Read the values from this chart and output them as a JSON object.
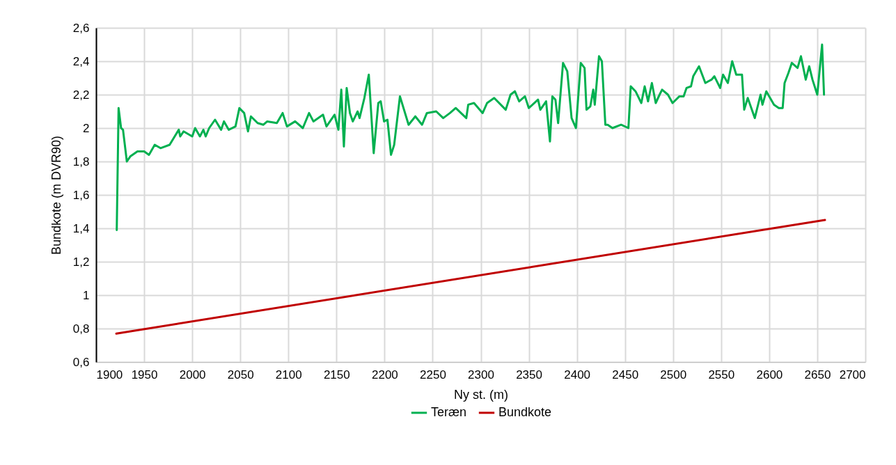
{
  "chart_data": {
    "type": "line",
    "xlabel": "Ny st. (m)",
    "ylabel": "Bundkote (m DVR90)",
    "xlim": [
      1900,
      2700
    ],
    "xticks": [
      1900,
      1950,
      2000,
      2050,
      2100,
      2150,
      2200,
      2250,
      2300,
      2350,
      2400,
      2450,
      2500,
      2550,
      2600,
      2650,
      2700
    ],
    "ylim": [
      0.6,
      2.6
    ],
    "yticks": [
      {
        "value": 0.6,
        "label": "0,6"
      },
      {
        "value": 0.8,
        "label": "0,8"
      },
      1,
      {
        "value": 1.2,
        "label": "1,2"
      },
      {
        "value": 1.4,
        "label": "1,4"
      },
      {
        "value": 1.6,
        "label": "1,6"
      },
      {
        "value": 1.8,
        "label": "1,8"
      },
      2,
      {
        "value": 2.2,
        "label": "2,2"
      },
      {
        "value": 2.4,
        "label": "2,4"
      },
      {
        "value": 2.6,
        "label": "2,6"
      }
    ],
    "grid": true,
    "legend": "bottom",
    "marker": "none",
    "line_style": "solid",
    "series": [
      {
        "name": "Teræn",
        "color": "#00b050",
        "x": [
          1921.5,
          1923.4,
          1926,
          1928,
          1932,
          1935.5,
          1943,
          1950,
          1955,
          1961,
          1967,
          1976.5,
          1986,
          1987.5,
          1991,
          2000,
          2003,
          2008,
          2011.6,
          2014,
          2017.6,
          2023.7,
          2030,
          2033,
          2038,
          2045,
          2049,
          2054,
          2058,
          2061,
          2068,
          2074,
          2078,
          2088,
          2094,
          2098.5,
          2107,
          2115,
          2121.5,
          2126,
          2136,
          2139.6,
          2148,
          2152,
          2155,
          2157.7,
          2160.6,
          2164,
          2167,
          2172,
          2174,
          2179,
          2183.6,
          2188.7,
          2193.5,
          2196,
          2199.5,
          2203,
          2206.7,
          2210,
          2216,
          2225,
          2232,
          2239,
          2244,
          2253.7,
          2261,
          2268,
          2274,
          2285,
          2287,
          2293,
          2302,
          2306.6,
          2314,
          2326,
          2331,
          2335.5,
          2340,
          2346,
          2350,
          2359.6,
          2362,
          2368,
          2372,
          2374.5,
          2377.7,
          2380.5,
          2385.6,
          2390,
          2394.5,
          2399,
          2404,
          2408,
          2410,
          2414,
          2417,
          2418.6,
          2423,
          2426,
          2429.6,
          2432,
          2437,
          2446,
          2453.6,
          2456,
          2461,
          2467,
          2470.5,
          2474,
          2478,
          2482,
          2486,
          2488.6,
          2494.7,
          2499.5,
          2506.6,
          2511,
          2514,
          2518.7,
          2521,
          2527,
          2533.6,
          2540,
          2543,
          2549,
          2552,
          2557,
          2561.5,
          2565.7,
          2571.7,
          2574,
          2577.7,
          2585,
          2591,
          2593,
          2597,
          2605,
          2610,
          2614,
          2616,
          2620,
          2623.5,
          2629.5,
          2633,
          2638,
          2641.6,
          2645,
          2650,
          2655,
          2657
        ],
        "values": [
          1.39,
          2.12,
          2.0,
          1.99,
          1.8,
          1.83,
          1.86,
          1.86,
          1.84,
          1.9,
          1.88,
          1.9,
          1.99,
          1.95,
          1.98,
          1.95,
          2.0,
          1.95,
          1.99,
          1.95,
          2.0,
          2.05,
          1.99,
          2.04,
          1.99,
          2.01,
          2.12,
          2.09,
          1.98,
          2.07,
          2.03,
          2.02,
          2.04,
          2.03,
          2.09,
          2.01,
          2.04,
          2.0,
          2.09,
          2.04,
          2.08,
          2.01,
          2.08,
          1.99,
          2.23,
          1.89,
          2.24,
          2.09,
          2.04,
          2.1,
          2.06,
          2.18,
          2.32,
          1.85,
          2.15,
          2.16,
          2.04,
          2.05,
          1.84,
          1.9,
          2.19,
          2.02,
          2.07,
          2.02,
          2.09,
          2.1,
          2.06,
          2.09,
          2.12,
          2.06,
          2.14,
          2.15,
          2.09,
          2.15,
          2.18,
          2.11,
          2.2,
          2.22,
          2.16,
          2.19,
          2.12,
          2.17,
          2.11,
          2.16,
          1.92,
          2.19,
          2.17,
          2.03,
          2.39,
          2.34,
          2.06,
          2.0,
          2.39,
          2.36,
          2.11,
          2.13,
          2.23,
          2.14,
          2.43,
          2.4,
          2.02,
          2.02,
          2.0,
          2.02,
          2.0,
          2.25,
          2.22,
          2.15,
          2.25,
          2.16,
          2.27,
          2.15,
          2.2,
          2.23,
          2.2,
          2.15,
          2.19,
          2.19,
          2.24,
          2.25,
          2.31,
          2.37,
          2.27,
          2.29,
          2.31,
          2.24,
          2.32,
          2.27,
          2.4,
          2.32,
          2.32,
          2.11,
          2.18,
          2.06,
          2.2,
          2.14,
          2.22,
          2.14,
          2.12,
          2.12,
          2.27,
          2.33,
          2.39,
          2.36,
          2.43,
          2.29,
          2.37,
          2.29,
          2.2,
          2.5,
          2.2
        ]
      },
      {
        "name": "Bundkote",
        "color": "#c00000",
        "x": [
          1921,
          2658
        ],
        "values": [
          0.77,
          1.45
        ]
      }
    ]
  }
}
